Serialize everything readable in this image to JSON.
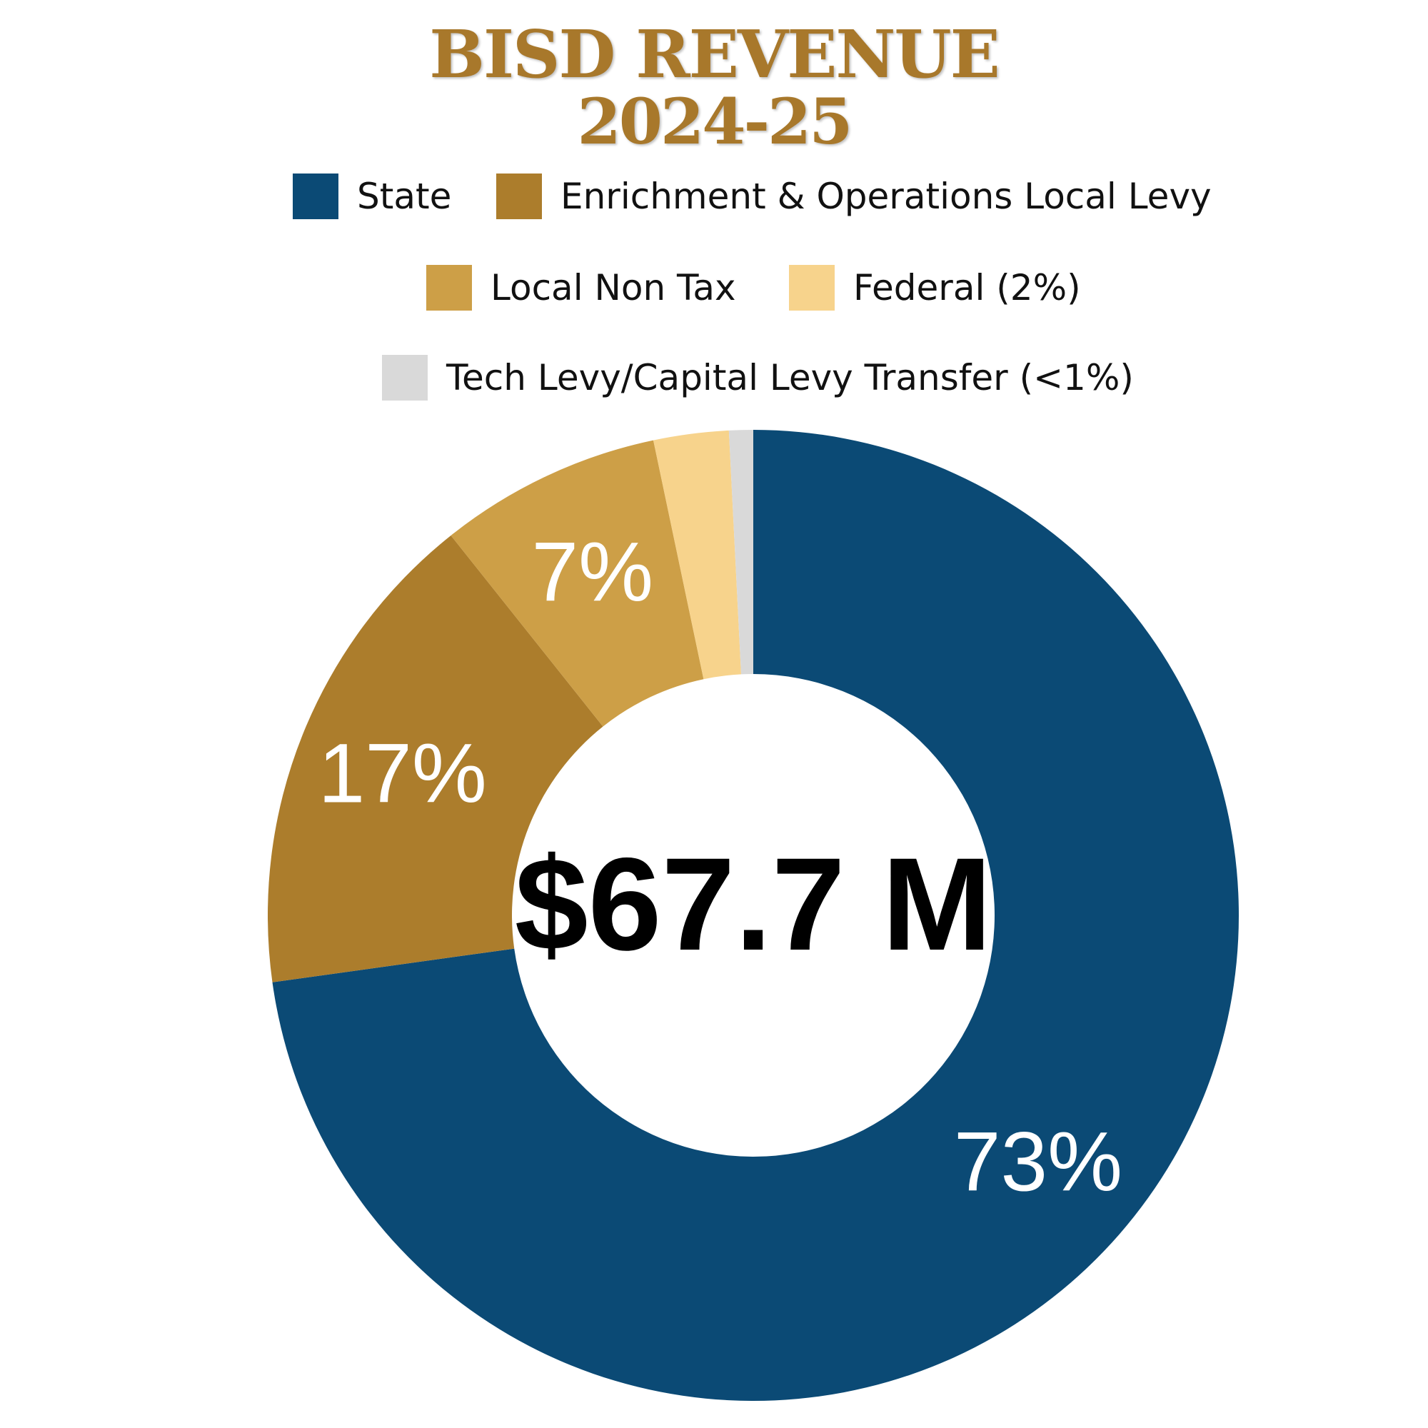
{
  "chart_data": {
    "type": "pie",
    "variant": "donut",
    "title": "BISD REVENUE",
    "subtitle": "2024-25",
    "center_label": "$67.7 M",
    "slices": [
      {
        "name": "State",
        "value": 72.8,
        "label": "73%",
        "color": "#0b4a75"
      },
      {
        "name": "Enrichment & Operations Local Levy",
        "value": 16.5,
        "label": "17%",
        "color": "#ac7d2c"
      },
      {
        "name": "Local Non Tax",
        "value": 7.4,
        "label": "7%",
        "color": "#cd9f47"
      },
      {
        "name": "Federal (2%)",
        "value": 2.5,
        "label": "",
        "color": "#f7d38c"
      },
      {
        "name": "Tech Levy/Capital Levy Transfer (<1%)",
        "value": 0.8,
        "label": "",
        "color": "#d9d9d9"
      }
    ],
    "legend_position": "top"
  }
}
